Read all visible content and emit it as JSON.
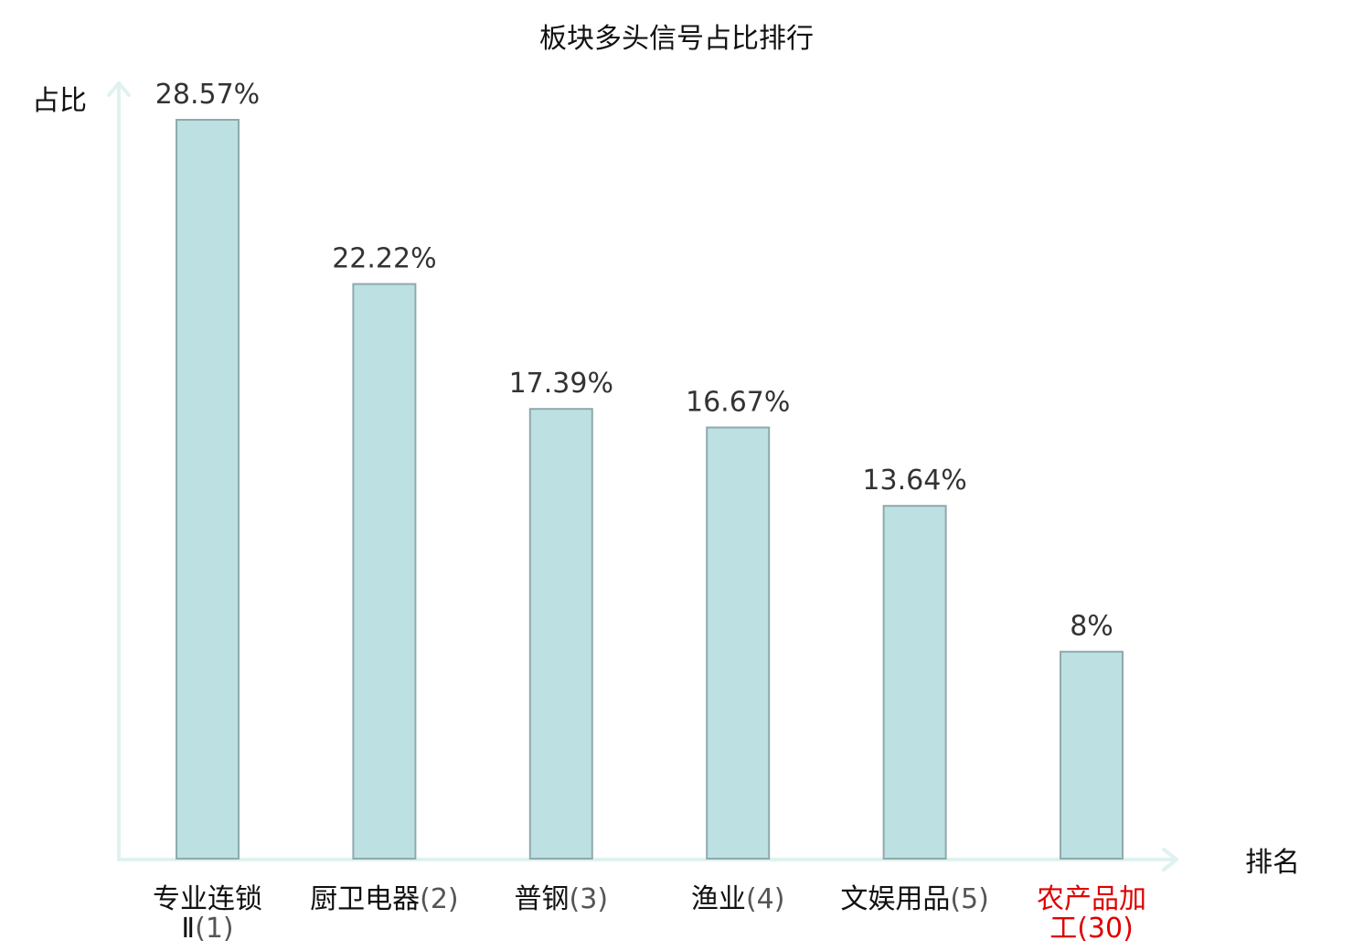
{
  "chart_data": {
    "type": "bar",
    "title": "板块多头信号占比排行",
    "xlabel": "排名",
    "ylabel": "占比",
    "unit": "%",
    "categories": [
      {
        "name_lines": [
          "专业连锁",
          "Ⅱ"
        ],
        "rank": "(1)",
        "highlight": false
      },
      {
        "name_lines": [
          "厨卫电器"
        ],
        "rank": "(2)",
        "highlight": false
      },
      {
        "name_lines": [
          "普钢"
        ],
        "rank": "(3)",
        "highlight": false
      },
      {
        "name_lines": [
          "渔业"
        ],
        "rank": "(4)",
        "highlight": false
      },
      {
        "name_lines": [
          "文娱用品"
        ],
        "rank": "(5)",
        "highlight": false
      },
      {
        "name_lines": [
          "农产品加",
          "工"
        ],
        "rank": "(30)",
        "highlight": true
      }
    ],
    "values": [
      28.57,
      22.22,
      17.39,
      16.67,
      13.64,
      8
    ],
    "value_labels": [
      "28.57%",
      "22.22%",
      "17.39%",
      "16.67%",
      "13.64%",
      "8%"
    ],
    "ylim": [
      0,
      30
    ],
    "grid": false,
    "legend": "none"
  },
  "colors": {
    "bar_fill": "#bde0e3",
    "bar_stroke": "#8fa9ab",
    "axis": "#dff2ef",
    "highlight_text": "#e00000",
    "normal_text": "#111111",
    "value_text": "#333333"
  }
}
